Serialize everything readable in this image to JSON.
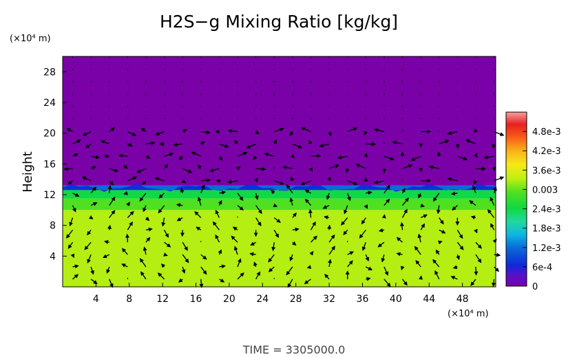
{
  "chart_data": {
    "type": "heatmap",
    "title": "H2S−g Mixing Ratio [kg/kg]",
    "ylabel": "Height",
    "y_unit_label": "(×10⁴ m)",
    "x_unit_label": "(×10⁴ m)",
    "xlim": [
      0,
      52
    ],
    "ylim": [
      0,
      30
    ],
    "x_ticks": [
      "4",
      "8",
      "12",
      "16",
      "20",
      "24",
      "28",
      "32",
      "36",
      "40",
      "44",
      "48"
    ],
    "y_ticks": [
      "4",
      "8",
      "12",
      "16",
      "20",
      "24",
      "28"
    ],
    "colorbar": {
      "range": [
        0,
        0.0054
      ],
      "tick_labels": [
        "0",
        "6e-4",
        "1.2e-3",
        "1.8e-3",
        "2.4e-3",
        "0.003",
        "3.6e-3",
        "4.2e-3",
        "4.8e-3"
      ],
      "tick_values": [
        0,
        0.0006,
        0.0012,
        0.0018,
        0.0024,
        0.003,
        0.0036,
        0.0042,
        0.0048
      ]
    },
    "field_regions": [
      {
        "y_from": 0,
        "y_to": 10,
        "value": 0.0033
      },
      {
        "y_from": 10,
        "y_to": 11.5,
        "value": 0.0029
      },
      {
        "y_from": 11.5,
        "y_to": 12.6,
        "value": 0.0024
      },
      {
        "y_from": 12.6,
        "y_to": 13.2,
        "value": 0.0012
      },
      {
        "y_from": 13.2,
        "y_to": 30,
        "value": 0.0
      }
    ],
    "vector_overlay": "wind vectors",
    "grid": false
  },
  "footer": {
    "time_label": "TIME  =  3305000.0"
  }
}
